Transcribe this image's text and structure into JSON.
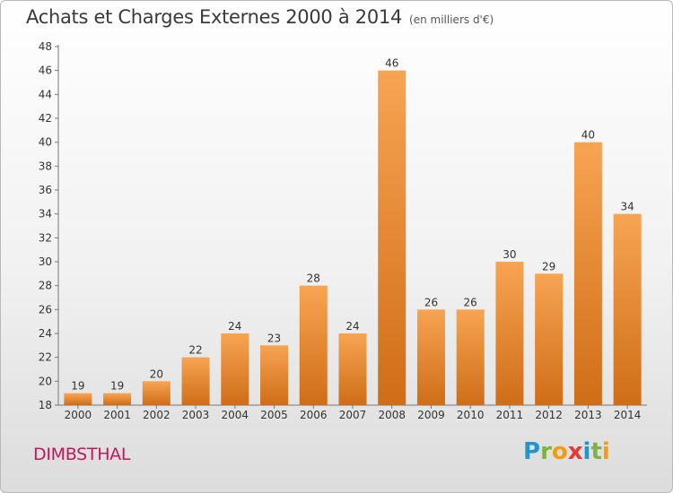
{
  "header": {
    "title": "Achats et Charges Externes 2000 à 2014",
    "subtitle": "(en milliers d'€)"
  },
  "footer": {
    "place": "DIMBSTHAL",
    "logo": {
      "letters": [
        "P",
        "r",
        "o",
        "x",
        "i",
        "t",
        "i"
      ],
      "colors": [
        "#2196c9",
        "#7cb342",
        "#f39c12",
        "#e53935",
        "#2196c9",
        "#7cb342",
        "#f39c12"
      ]
    }
  },
  "chart_data": {
    "type": "bar",
    "categories": [
      "2000",
      "2001",
      "2002",
      "2003",
      "2004",
      "2005",
      "2006",
      "2007",
      "2008",
      "2009",
      "2010",
      "2011",
      "2012",
      "2013",
      "2014"
    ],
    "values": [
      19,
      19,
      20,
      22,
      24,
      23,
      28,
      24,
      46,
      26,
      26,
      30,
      29,
      40,
      34
    ],
    "title": "Achats et Charges Externes 2000 à 2014",
    "xlabel": "",
    "ylabel": "",
    "ylim": [
      18,
      48
    ],
    "yticks": [
      18,
      20,
      22,
      24,
      26,
      28,
      30,
      32,
      34,
      36,
      38,
      40,
      42,
      44,
      46,
      48
    ],
    "grid": false,
    "bar_color_top": "#f7a452",
    "bar_color_bottom": "#cf6d18"
  }
}
